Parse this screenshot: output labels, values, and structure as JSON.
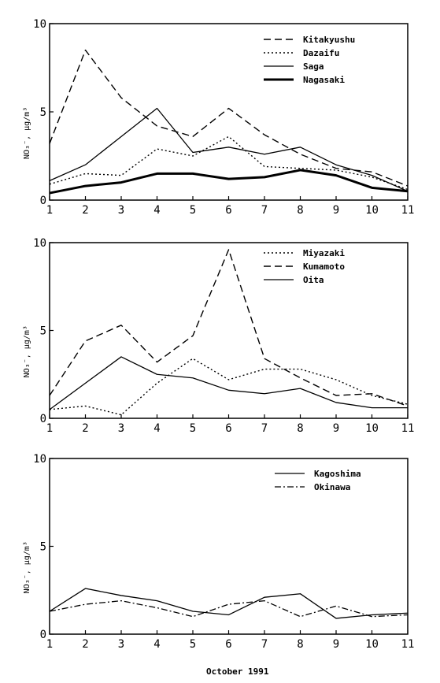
{
  "caption": "October 1991",
  "chart_data": [
    {
      "type": "line",
      "x": [
        1,
        2,
        3,
        4,
        5,
        6,
        7,
        8,
        9,
        10,
        11
      ],
      "ylabel": "NO₃⁻, μg/m³",
      "xlim": [
        1,
        11
      ],
      "ylim": [
        0,
        10
      ],
      "yticks": [
        0,
        5,
        10
      ],
      "grid": false,
      "legend_position": "top-right",
      "series": [
        {
          "name": "Kitakyushu",
          "style": "dashed",
          "values": [
            3.2,
            8.5,
            5.8,
            4.2,
            3.6,
            5.2,
            3.7,
            2.6,
            1.8,
            1.6,
            0.8
          ]
        },
        {
          "name": "Dazaifu",
          "style": "dotted",
          "values": [
            0.9,
            1.5,
            1.4,
            2.9,
            2.5,
            3.6,
            1.9,
            1.8,
            1.7,
            1.3,
            0.6
          ]
        },
        {
          "name": "Saga",
          "style": "solid",
          "values": [
            1.1,
            2.0,
            3.6,
            5.2,
            2.7,
            3.0,
            2.6,
            3.0,
            2.0,
            1.4,
            0.5
          ]
        },
        {
          "name": "Nagasaki",
          "style": "bold",
          "values": [
            0.4,
            0.8,
            1.0,
            1.5,
            1.5,
            1.2,
            1.3,
            1.7,
            1.4,
            0.7,
            0.5
          ]
        }
      ]
    },
    {
      "type": "line",
      "x": [
        1,
        2,
        3,
        4,
        5,
        6,
        7,
        8,
        9,
        10,
        11
      ],
      "ylabel": "NO₃⁻, μg/m³",
      "xlim": [
        1,
        11
      ],
      "ylim": [
        0,
        10
      ],
      "yticks": [
        0,
        5,
        10
      ],
      "grid": false,
      "legend_position": "top-right",
      "series": [
        {
          "name": "Miyazaki",
          "style": "dotted",
          "values": [
            0.5,
            0.7,
            0.2,
            2.0,
            3.4,
            2.2,
            2.8,
            2.8,
            2.2,
            1.3,
            0.8
          ]
        },
        {
          "name": "Kumamoto",
          "style": "dashed",
          "values": [
            1.3,
            4.4,
            5.3,
            3.2,
            4.7,
            9.6,
            3.4,
            2.3,
            1.3,
            1.4,
            0.7
          ]
        },
        {
          "name": "Oita",
          "style": "solid",
          "values": [
            0.5,
            2.0,
            3.5,
            2.5,
            2.3,
            1.6,
            1.4,
            1.7,
            0.9,
            0.6,
            0.6
          ]
        }
      ]
    },
    {
      "type": "line",
      "x": [
        1,
        2,
        3,
        4,
        5,
        6,
        7,
        8,
        9,
        10,
        11
      ],
      "ylabel": "NO₃⁻, μg/m³",
      "xlabel": "October 1991",
      "xlim": [
        1,
        11
      ],
      "ylim": [
        0,
        10
      ],
      "yticks": [
        0,
        5,
        10
      ],
      "grid": false,
      "legend_position": "top-right",
      "series": [
        {
          "name": "Kagoshima",
          "style": "solid",
          "values": [
            1.3,
            2.6,
            2.2,
            1.9,
            1.3,
            1.1,
            2.1,
            2.3,
            0.9,
            1.1,
            1.2
          ]
        },
        {
          "name": "Okinawa",
          "style": "dashdot",
          "values": [
            1.3,
            1.7,
            1.9,
            1.5,
            1.0,
            1.7,
            1.9,
            1.0,
            1.6,
            1.0,
            1.1
          ]
        }
      ]
    }
  ]
}
